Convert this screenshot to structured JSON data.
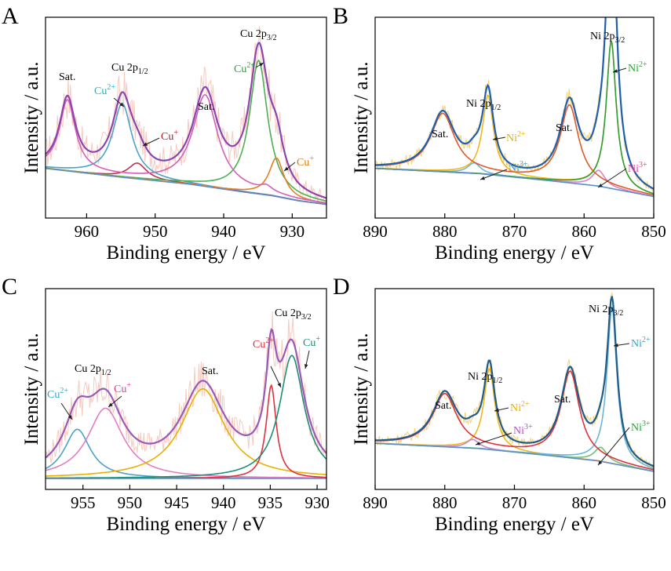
{
  "chart_data": [
    {
      "panel": "A",
      "type": "line",
      "xlabel": "Binding energy / eV",
      "ylabel": "Intensity / a.u.",
      "xlim": [
        966,
        925
      ],
      "ylim": [
        0,
        100
      ],
      "x_ticks": [
        960,
        950,
        940,
        930
      ],
      "reversed_x": true,
      "background": {
        "x": [
          966,
          955,
          945,
          937,
          933,
          929,
          925
        ],
        "y": [
          22,
          17,
          13,
          8.5,
          6.5,
          3.5,
          1.5
        ]
      },
      "series": [
        {
          "color": "#4aa3c8",
          "peaks": [
            {
              "center": 954.8,
              "amp": 42,
              "fwhm": 3.4
            }
          ]
        },
        {
          "color": "#b8334e",
          "peaks": [
            {
              "center": 952.6,
              "amp": 9,
              "fwhm": 3.2
            }
          ]
        },
        {
          "color": "#4caf50",
          "peaks": [
            {
              "center": 934.9,
              "amp": 76,
              "fwhm": 3.2
            }
          ]
        },
        {
          "color": "#e67e22",
          "peaks": [
            {
              "center": 932.3,
              "amp": 22,
              "fwhm": 2.6
            }
          ]
        },
        {
          "color": "#d45fb8",
          "peaks": [
            {
              "center": 962.8,
              "amp": 40,
              "fwhm": 2.8
            },
            {
              "center": 942.7,
              "amp": 52,
              "fwhm": 4.4
            },
            {
              "center": 933.8,
              "amp": 3,
              "fwhm": 2
            }
          ]
        },
        {
          "color": "#8e44ad",
          "envelope": true
        }
      ],
      "noise_color": "#f4b7a8",
      "annotations": [
        {
          "base": "Sat.",
          "color": "#000000"
        },
        {
          "base": "Cu 2p",
          "sub": "1/2",
          "color": "#000000"
        },
        {
          "base": "Cu",
          "sup": "2+",
          "color": "#1ab3c8"
        },
        {
          "base": "Cu",
          "sup": "+",
          "color": "#b31b2d"
        },
        {
          "base": "Sat.",
          "color": "#000000"
        },
        {
          "base": "Cu 2p",
          "sub": "3/2",
          "color": "#000000"
        },
        {
          "base": "Cu",
          "sup": "2+",
          "color": "#2e9e3a"
        },
        {
          "base": "Cu",
          "sup": "+",
          "color": "#e07b00"
        }
      ]
    },
    {
      "panel": "B",
      "type": "line",
      "xlabel": "Binding energy / eV",
      "ylabel": "Intensity / a.u.",
      "xlim": [
        890,
        850
      ],
      "ylim": [
        0,
        100
      ],
      "x_ticks": [
        890,
        880,
        870,
        860,
        850
      ],
      "reversed_x": true,
      "background": {
        "x": [
          890,
          875,
          865,
          858,
          854,
          850
        ],
        "y": [
          22,
          19,
          15,
          12,
          9,
          6
        ]
      },
      "series": [
        {
          "color": "#f2b71b",
          "peaks": [
            {
              "center": 873.8,
              "amp": 45,
              "fwhm": 1.9
            },
            {
              "center": 856.1,
              "amp": 84,
              "fwhm": 1.7
            }
          ]
        },
        {
          "color": "#6cb5d8",
          "peaks": [
            {
              "center": 875.8,
              "amp": 6,
              "fwhm": 2.2
            }
          ]
        },
        {
          "color": "#e37dc4",
          "peaks": [
            {
              "center": 857.9,
              "amp": 9,
              "fwhm": 2.2
            }
          ]
        },
        {
          "color": "#e05a28",
          "peaks": [
            {
              "center": 880.3,
              "amp": 33,
              "fwhm": 4.2
            },
            {
              "center": 862.1,
              "amp": 44,
              "fwhm": 3.2
            }
          ]
        },
        {
          "color": "#2e9e3a",
          "peaks": [
            {
              "center": 856.1,
              "amp": 84,
              "fwhm": 1.7
            }
          ]
        },
        {
          "color": "#1f5fae",
          "envelope": true
        }
      ],
      "noise_color": "#f2c24e",
      "annotations": [
        {
          "base": "Sat.",
          "color": "#000000"
        },
        {
          "base": "Ni 2p",
          "sub": "1/2",
          "color": "#000000"
        },
        {
          "base": "Ni",
          "sup": "2+",
          "color": "#e8b000"
        },
        {
          "base": "Ni",
          "sup": "3+",
          "color": "#3aa0c8"
        },
        {
          "base": "Sat.",
          "color": "#000000"
        },
        {
          "base": "Ni 2p",
          "sub": "3/2",
          "color": "#000000"
        },
        {
          "base": "Ni",
          "sup": "2+",
          "color": "#2e9e3a"
        },
        {
          "base": "Ni",
          "sup": "3+",
          "color": "#e0409b"
        }
      ]
    },
    {
      "panel": "C",
      "type": "line",
      "xlabel": "Binding energy / eV",
      "ylabel": "Intensity / a.u.",
      "xlim": [
        959,
        929
      ],
      "ylim": [
        0,
        100
      ],
      "x_ticks": [
        955,
        950,
        945,
        940,
        935,
        930
      ],
      "reversed_x": true,
      "background": {
        "x": [
          959,
          929
        ],
        "y": [
          0,
          0
        ]
      },
      "series": [
        {
          "color": "#4aa3c8",
          "peaks": [
            {
              "center": 955.6,
              "amp": 28,
              "fwhm": 3.4
            }
          ]
        },
        {
          "color": "#e37dc4",
          "peaks": [
            {
              "center": 952.6,
              "amp": 40,
              "fwhm": 4.6
            }
          ]
        },
        {
          "color": "#e8b000",
          "peaks": [
            {
              "center": 942.2,
              "amp": 51,
              "fwhm": 5.6
            }
          ]
        },
        {
          "color": "#e0303d",
          "peaks": [
            {
              "center": 934.9,
              "amp": 53,
              "fwhm": 1.3
            }
          ]
        },
        {
          "color": "#1e8f73",
          "peaks": [
            {
              "center": 932.7,
              "amp": 70,
              "fwhm": 3.2
            }
          ]
        },
        {
          "color": "#9b59b6",
          "envelope": true
        }
      ],
      "noise_color": "#f4b7a8",
      "annotations": [
        {
          "base": "Cu 2p",
          "sub": "1/2",
          "color": "#000000"
        },
        {
          "base": "Cu",
          "sup": "2+",
          "color": "#2fa8c8"
        },
        {
          "base": "Cu",
          "sup": "+",
          "color": "#e0409b"
        },
        {
          "base": "Sat.",
          "color": "#000000"
        },
        {
          "base": "Cu 2p",
          "sub": "3/2",
          "color": "#000000"
        },
        {
          "base": "Cu",
          "sup": "2+",
          "color": "#e0303d"
        },
        {
          "base": "Cu",
          "sup": "+",
          "color": "#1e8f73"
        }
      ]
    },
    {
      "panel": "D",
      "type": "line",
      "xlabel": "Binding energy / eV",
      "ylabel": "Intensity / a.u.",
      "xlim": [
        890,
        850
      ],
      "ylim": [
        0,
        100
      ],
      "x_ticks": [
        890,
        880,
        870,
        860,
        850
      ],
      "reversed_x": true,
      "background": {
        "x": [
          890,
          875,
          865,
          858,
          854,
          850
        ],
        "y": [
          20,
          17,
          13,
          10,
          7,
          4
        ]
      },
      "series": [
        {
          "color": "#f2b71b",
          "peaks": [
            {
              "center": 873.6,
              "amp": 46,
              "fwhm": 1.9
            }
          ]
        },
        {
          "color": "#6cb5d8",
          "peaks": [
            {
              "center": 856.0,
              "amp": 89,
              "fwhm": 1.7
            }
          ]
        },
        {
          "color": "#c28ad0",
          "peaks": [
            {
              "center": 876.0,
              "amp": 5,
              "fwhm": 2.2
            }
          ]
        },
        {
          "color": "#6cc07a",
          "peaks": [
            {
              "center": 857.6,
              "amp": 8,
              "fwhm": 2.2
            }
          ]
        },
        {
          "color": "#e0303d",
          "peaks": [
            {
              "center": 880.0,
              "amp": 30,
              "fwhm": 4.2
            },
            {
              "center": 862.0,
              "amp": 49,
              "fwhm": 3.2
            }
          ]
        },
        {
          "color": "#1f5c8a",
          "envelope": true
        }
      ],
      "noise_color": "#f2c24e",
      "annotations": [
        {
          "base": "Sat.",
          "color": "#000000"
        },
        {
          "base": "Ni 2p",
          "sub": "1/2",
          "color": "#000000"
        },
        {
          "base": "Ni",
          "sup": "2+",
          "color": "#e8b000"
        },
        {
          "base": "Ni",
          "sup": "3+",
          "color": "#a855c0"
        },
        {
          "base": "Sat.",
          "color": "#000000"
        },
        {
          "base": "Ni 2p",
          "sub": "3/2",
          "color": "#000000"
        },
        {
          "base": "Ni",
          "sup": "2+",
          "color": "#2fa8c8"
        },
        {
          "base": "Ni",
          "sup": "3+",
          "color": "#2e9e3a"
        }
      ]
    }
  ]
}
